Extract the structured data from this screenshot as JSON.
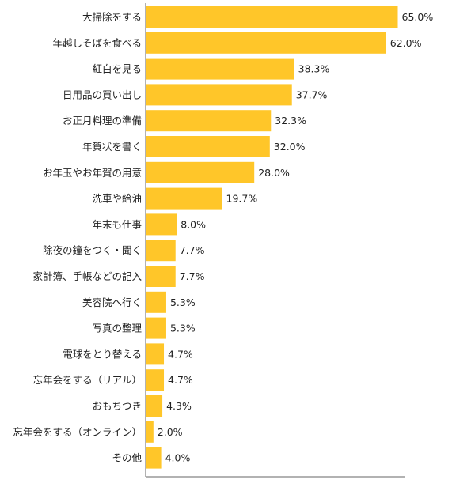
{
  "chart_data": {
    "type": "bar",
    "orientation": "horizontal",
    "categories": [
      "大掃除をする",
      "年越しそばを食べる",
      "紅白を見る",
      "日用品の買い出し",
      "お正月料理の準備",
      "年賀状を書く",
      "お年玉やお年賀の用意",
      "洗車や給油",
      "年末も仕事",
      "除夜の鐘をつく・聞く",
      "家計簿、手帳などの記入",
      "美容院へ行く",
      "写真の整理",
      "電球をとり替える",
      "忘年会をする（リアル）",
      "おもちつき",
      "忘年会をする（オンライン）",
      "その他"
    ],
    "values": [
      65.0,
      62.0,
      38.3,
      37.7,
      32.3,
      32.0,
      28.0,
      19.7,
      8.0,
      7.7,
      7.7,
      5.3,
      5.3,
      4.7,
      4.7,
      4.3,
      2.0,
      4.0
    ],
    "value_labels": [
      "65.0%",
      "62.0%",
      "38.3%",
      "37.7%",
      "32.3%",
      "32.0%",
      "28.0%",
      "19.7%",
      "8.0%",
      "7.7%",
      "7.7%",
      "5.3%",
      "5.3%",
      "4.7%",
      "4.7%",
      "4.3%",
      "2.0%",
      "4.0%"
    ],
    "title": "",
    "xlabel": "",
    "ylabel": "",
    "xlim": [
      0,
      72
    ],
    "grid": false,
    "legend": "none",
    "bar_color": "#FFC629",
    "axis_color": "#666666"
  }
}
